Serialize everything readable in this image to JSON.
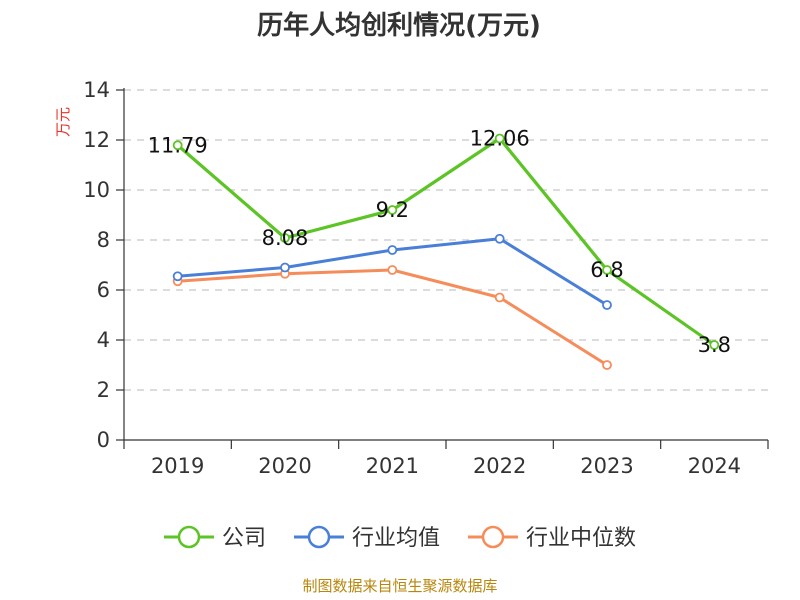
{
  "chart_data": {
    "type": "line",
    "title": "历年人均创利情况(万元)",
    "xlabel": "",
    "ylabel": "万元",
    "categories": [
      "2019",
      "2020",
      "2021",
      "2022",
      "2023",
      "2024"
    ],
    "ylim": [
      0,
      14
    ],
    "yticks": [
      0,
      2,
      4,
      6,
      8,
      10,
      12,
      14
    ],
    "grid": true,
    "legend_position": "bottom",
    "series": [
      {
        "name": "公司",
        "color": "#5cc424",
        "values": [
          11.79,
          8.08,
          9.2,
          12.06,
          6.8,
          3.8
        ],
        "labels": [
          "11.79",
          "8.08",
          "9.2",
          "12.06",
          "6.8",
          "3.8"
        ]
      },
      {
        "name": "行业均值",
        "color": "#4a7fd8",
        "values": [
          6.55,
          6.9,
          7.6,
          8.05,
          5.4,
          null
        ]
      },
      {
        "name": "行业中位数",
        "color": "#f58c5a",
        "values": [
          6.35,
          6.65,
          6.8,
          5.7,
          3.0,
          null
        ]
      }
    ]
  },
  "footer": {
    "source": "制图数据来自恒生聚源数据库"
  }
}
